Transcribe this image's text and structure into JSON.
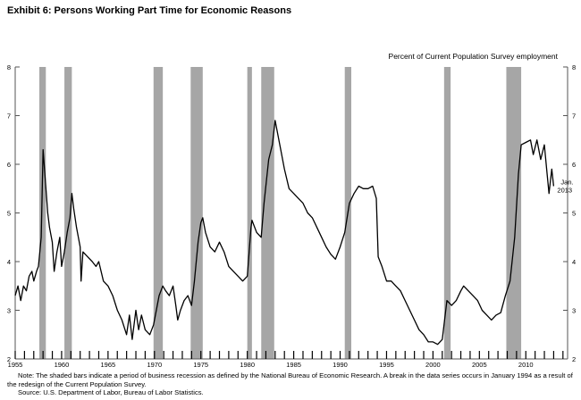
{
  "chart_data": {
    "type": "line",
    "title": "Exhibit 6: Persons Working Part Time for Economic Reasons",
    "ylabel": "Percent of Current Population Survey employment",
    "xlabel": "",
    "xlim": [
      1955,
      2014.5
    ],
    "ylim": [
      2,
      8
    ],
    "yticks": [
      2,
      3,
      4,
      5,
      6,
      7,
      8
    ],
    "xtick_labels": [
      "1955",
      "1960",
      "1965",
      "1970",
      "1975",
      "1980",
      "1985",
      "1990",
      "1995",
      "2000",
      "2005",
      "2010"
    ],
    "grid": false,
    "end_annotation": "Jan. 2013",
    "recessions": [
      [
        1957.6,
        1958.3
      ],
      [
        1960.3,
        1961.1
      ],
      [
        1969.9,
        1970.9
      ],
      [
        1973.9,
        1975.2
      ],
      [
        1980.0,
        1980.5
      ],
      [
        1981.5,
        1982.9
      ],
      [
        1990.5,
        1991.2
      ],
      [
        2001.2,
        2001.9
      ],
      [
        2007.9,
        2009.5
      ]
    ],
    "series": [
      {
        "name": "Persons working part time for economic reasons",
        "x": [
          1955.0,
          1955.3,
          1955.6,
          1955.9,
          1956.2,
          1956.5,
          1956.8,
          1957.0,
          1957.3,
          1957.5,
          1957.8,
          1958.0,
          1958.2,
          1958.5,
          1958.7,
          1959.0,
          1959.2,
          1959.5,
          1959.8,
          1960.0,
          1960.3,
          1960.6,
          1960.9,
          1961.1,
          1961.3,
          1961.6,
          1962.0,
          1962.1,
          1962.3,
          1962.8,
          1963.3,
          1963.7,
          1964.0,
          1964.5,
          1965.0,
          1965.5,
          1966.0,
          1966.5,
          1967.0,
          1967.3,
          1967.6,
          1968.0,
          1968.3,
          1968.6,
          1969.0,
          1969.5,
          1969.9,
          1970.2,
          1970.5,
          1970.9,
          1971.2,
          1971.6,
          1972.0,
          1972.3,
          1972.5,
          1972.8,
          1973.2,
          1973.6,
          1974.0,
          1974.3,
          1974.7,
          1975.0,
          1975.2,
          1975.5,
          1976.0,
          1976.5,
          1977.0,
          1977.5,
          1978.0,
          1978.5,
          1979.0,
          1979.5,
          1980.0,
          1980.4,
          1980.5,
          1981.0,
          1981.5,
          1981.8,
          1982.3,
          1982.7,
          1983.0,
          1983.2,
          1983.6,
          1984.0,
          1984.5,
          1985.0,
          1985.5,
          1986.0,
          1986.5,
          1987.0,
          1987.5,
          1988.0,
          1988.5,
          1989.0,
          1989.5,
          1990.0,
          1990.5,
          1991.0,
          1991.5,
          1992.0,
          1992.5,
          1993.0,
          1993.5,
          1993.9,
          1994.1,
          1994.5,
          1995.0,
          1995.5,
          1996.0,
          1996.5,
          1997.0,
          1997.5,
          1998.0,
          1998.5,
          1999.0,
          1999.5,
          2000.0,
          2000.5,
          2001.0,
          2001.5,
          2002.0,
          2002.5,
          2003.0,
          2003.3,
          2003.8,
          2004.3,
          2004.8,
          2005.3,
          2005.8,
          2006.3,
          2006.8,
          2007.3,
          2007.8,
          2008.3,
          2008.8,
          2009.2,
          2009.5,
          2010.0,
          2010.5,
          2010.8,
          2011.2,
          2011.6,
          2012.0,
          2012.3,
          2012.5,
          2012.8,
          2013.0
        ],
        "y": [
          3.3,
          3.5,
          3.2,
          3.5,
          3.4,
          3.7,
          3.8,
          3.6,
          3.8,
          3.9,
          4.5,
          6.3,
          5.8,
          5.0,
          4.7,
          4.4,
          3.8,
          4.2,
          4.5,
          3.9,
          4.2,
          4.6,
          4.9,
          5.4,
          5.1,
          4.7,
          4.3,
          3.6,
          4.2,
          4.1,
          4.0,
          3.9,
          4.0,
          3.6,
          3.5,
          3.3,
          3.0,
          2.8,
          2.5,
          2.9,
          2.4,
          3.0,
          2.6,
          2.9,
          2.6,
          2.5,
          2.7,
          3.0,
          3.3,
          3.5,
          3.4,
          3.3,
          3.5,
          3.1,
          2.8,
          3.0,
          3.2,
          3.3,
          3.1,
          3.6,
          4.4,
          4.8,
          4.9,
          4.6,
          4.3,
          4.2,
          4.4,
          4.2,
          3.9,
          3.8,
          3.7,
          3.6,
          3.7,
          4.7,
          4.85,
          4.6,
          4.5,
          5.2,
          6.1,
          6.4,
          6.9,
          6.7,
          6.3,
          5.9,
          5.5,
          5.4,
          5.3,
          5.2,
          5.0,
          4.9,
          4.7,
          4.5,
          4.3,
          4.15,
          4.05,
          4.3,
          4.6,
          5.2,
          5.4,
          5.55,
          5.5,
          5.5,
          5.55,
          5.3,
          4.1,
          3.9,
          3.6,
          3.6,
          3.5,
          3.4,
          3.2,
          3.0,
          2.8,
          2.6,
          2.5,
          2.35,
          2.35,
          2.3,
          2.4,
          3.2,
          3.1,
          3.2,
          3.4,
          3.5,
          3.4,
          3.3,
          3.2,
          3.0,
          2.9,
          2.8,
          2.9,
          2.95,
          3.3,
          3.6,
          4.5,
          5.8,
          6.4,
          6.45,
          6.5,
          6.2,
          6.5,
          6.1,
          6.4,
          5.8,
          5.4,
          5.9,
          5.55
        ]
      }
    ]
  },
  "note": "Note: The shaded bars indicate a period of business recession as defined by the National Bureau of Economic Research. A break in the data series occurs in January 1994 as a result of the redesign of the Current Population Survey.",
  "source": "Source: U.S. Department of Labor, Bureau of Labor Statistics.",
  "colors": {
    "recession": "#a6a6a6",
    "line": "#000000",
    "axis": "#555555"
  }
}
